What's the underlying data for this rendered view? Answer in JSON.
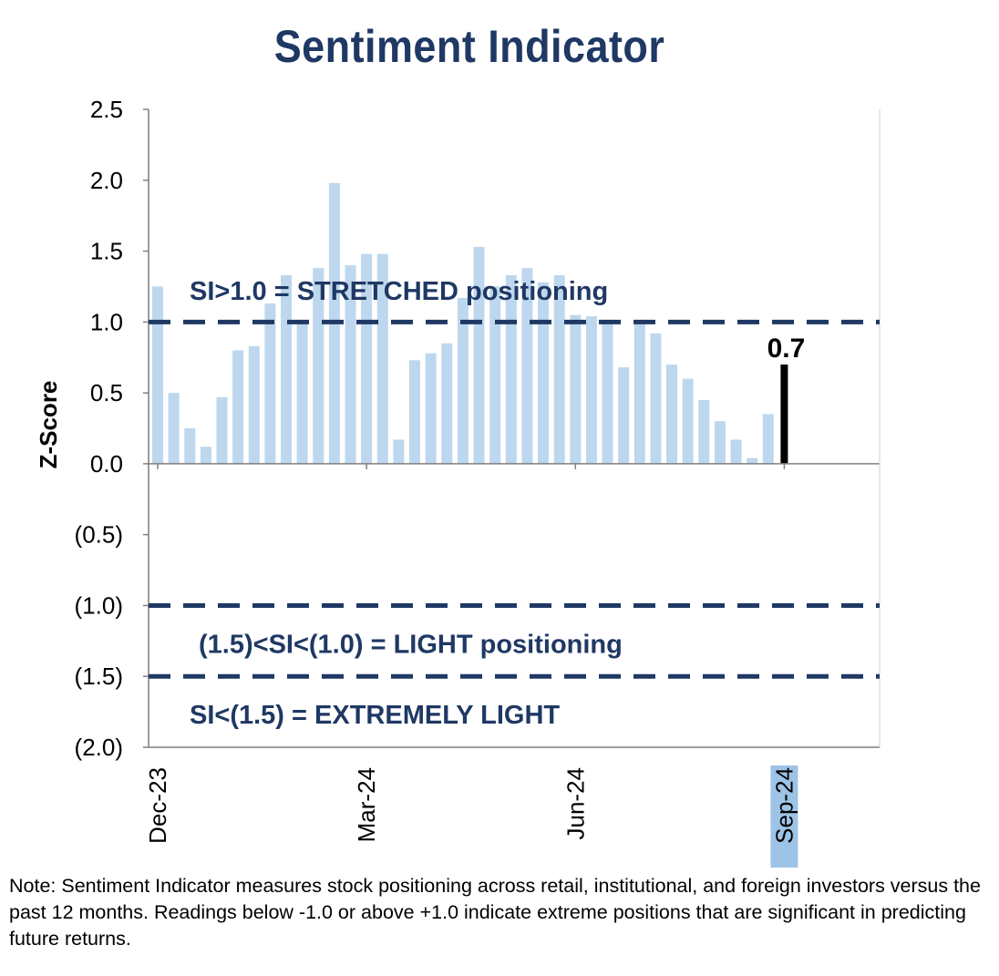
{
  "chart_data": {
    "type": "bar",
    "title": "Sentiment Indicator",
    "ylabel": "Z-Score",
    "xlabel": "",
    "ylim": [
      -2.0,
      2.5
    ],
    "yticks": [
      {
        "value": 2.5,
        "label": "2.5"
      },
      {
        "value": 2.0,
        "label": "2.0"
      },
      {
        "value": 1.5,
        "label": "1.5"
      },
      {
        "value": 1.0,
        "label": "1.0"
      },
      {
        "value": 0.5,
        "label": "0.5"
      },
      {
        "value": 0.0,
        "label": "0.0"
      },
      {
        "value": -0.5,
        "label": "(0.5)"
      },
      {
        "value": -1.0,
        "label": "(1.0)"
      },
      {
        "value": -1.5,
        "label": "(1.5)"
      },
      {
        "value": -2.0,
        "label": "(2.0)"
      }
    ],
    "xticks": [
      {
        "index": 0,
        "label": "Dec-23",
        "highlight": false
      },
      {
        "index": 13,
        "label": "Mar-24",
        "highlight": false
      },
      {
        "index": 26,
        "label": "Jun-24",
        "highlight": false
      },
      {
        "index": 39,
        "label": "Sep-24",
        "highlight": true
      }
    ],
    "values": [
      1.25,
      0.5,
      0.25,
      0.12,
      0.47,
      0.8,
      0.83,
      1.13,
      1.33,
      1.0,
      1.38,
      1.98,
      1.4,
      1.48,
      1.48,
      0.17,
      0.73,
      0.78,
      0.85,
      1.17,
      1.53,
      1.25,
      1.33,
      1.38,
      1.28,
      1.33,
      1.05,
      1.04,
      1.0,
      0.68,
      1.0,
      0.92,
      0.7,
      0.6,
      0.45,
      0.3,
      0.17,
      0.04,
      0.35,
      0.7
    ],
    "latest": {
      "value": 0.7,
      "label": "0.7"
    },
    "reference_lines": [
      {
        "value": 1.0,
        "style": "dashed"
      },
      {
        "value": -1.0,
        "style": "dashed"
      },
      {
        "value": -1.5,
        "style": "dashed"
      }
    ],
    "annotations": [
      {
        "text": "SI>1.0 = STRETCHED positioning",
        "y": 1.22
      },
      {
        "text": "(1.5)<SI<(1.0) = LIGHT positioning",
        "y": -1.27
      },
      {
        "text": "SI<(1.5) = EXTREMELY LIGHT",
        "y": -1.77
      }
    ],
    "colors": {
      "bars": "#bdd7ee",
      "latest_bar": "#000000",
      "reference": "#1f3864",
      "title": "#1f3864",
      "highlight_tick": "#9dc3e6"
    },
    "grid": false,
    "legend": "none"
  },
  "note": "Note: Sentiment Indicator measures stock positioning across retail, institutional, and foreign investors versus the past 12 months. Readings below -1.0 or above +1.0 indicate extreme positions that are significant in predicting future returns."
}
